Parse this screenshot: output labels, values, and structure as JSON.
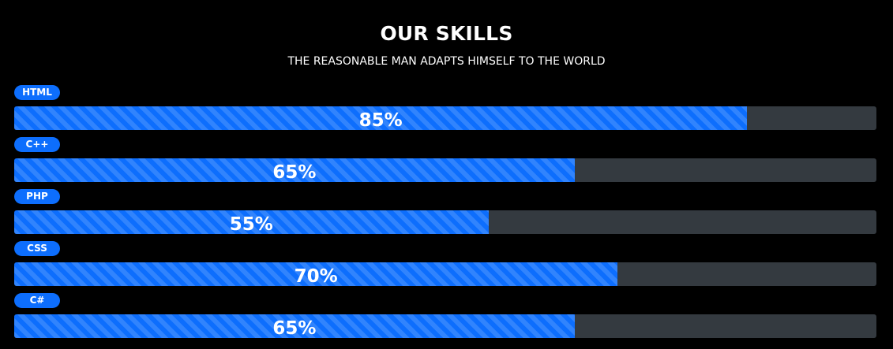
{
  "header": {
    "title": "OUR SKILLS",
    "subtitle": "THE REASONABLE MAN ADAPTS HIMSELF TO THE WORLD"
  },
  "colors": {
    "accent": "#0d6efd",
    "track": "#343a40",
    "background": "#000000"
  },
  "skills": [
    {
      "name": "HTML",
      "percent": 85,
      "label": "85%"
    },
    {
      "name": "C++",
      "percent": 65,
      "label": "65%"
    },
    {
      "name": "PHP",
      "percent": 55,
      "label": "55%"
    },
    {
      "name": "CSS",
      "percent": 70,
      "label": "70%"
    },
    {
      "name": "C#",
      "percent": 65,
      "label": "65%"
    }
  ]
}
